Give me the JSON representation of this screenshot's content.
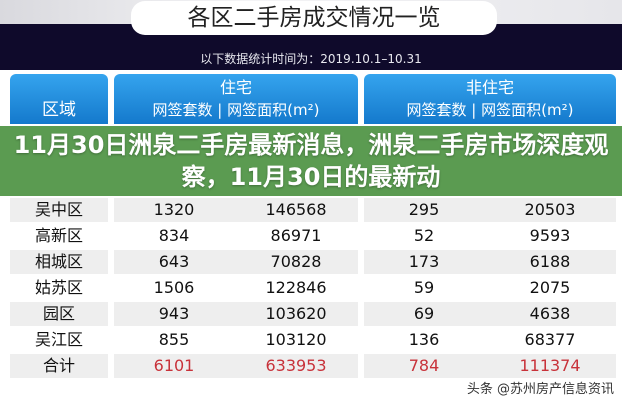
{
  "image": {
    "title": "各区二手房成交情况一览",
    "subtitle": "以下数据统计时间为：2019.10.1–10.31"
  },
  "table": {
    "headers": {
      "region": "区域",
      "residential": "住宅",
      "non_residential": "非住宅",
      "count": "网签套数",
      "area": "网签面积(m²)"
    },
    "rows": [
      {
        "region": "吴中区",
        "res_count": "1320",
        "res_area": "146568",
        "non_count": "295",
        "non_area": "20503"
      },
      {
        "region": "高新区",
        "res_count": "834",
        "res_area": "86971",
        "non_count": "52",
        "non_area": "9593"
      },
      {
        "region": "相城区",
        "res_count": "643",
        "res_area": "70828",
        "non_count": "173",
        "non_area": "6188"
      },
      {
        "region": "姑苏区",
        "res_count": "1506",
        "res_area": "122846",
        "non_count": "59",
        "non_area": "2075"
      },
      {
        "region": "园区",
        "res_count": "943",
        "res_area": "103620",
        "non_count": "69",
        "non_area": "4638"
      },
      {
        "region": "吴江区",
        "res_count": "855",
        "res_area": "103120",
        "non_count": "136",
        "non_area": "68377"
      },
      {
        "region": "合计",
        "res_count": "6101",
        "res_area": "633953",
        "non_count": "784",
        "non_area": "111374"
      }
    ]
  },
  "overlay_title": "11月30日洲泉二手房最新消息，洲泉二手房市场深度观察，11月30日的最新动",
  "watermark": "头条 @苏州房产信息资讯",
  "colors": {
    "header_blue": "#1f8ad9",
    "overlay_green": "#529648",
    "total_red": "#c8323a",
    "navy": "#0f0a2b"
  }
}
